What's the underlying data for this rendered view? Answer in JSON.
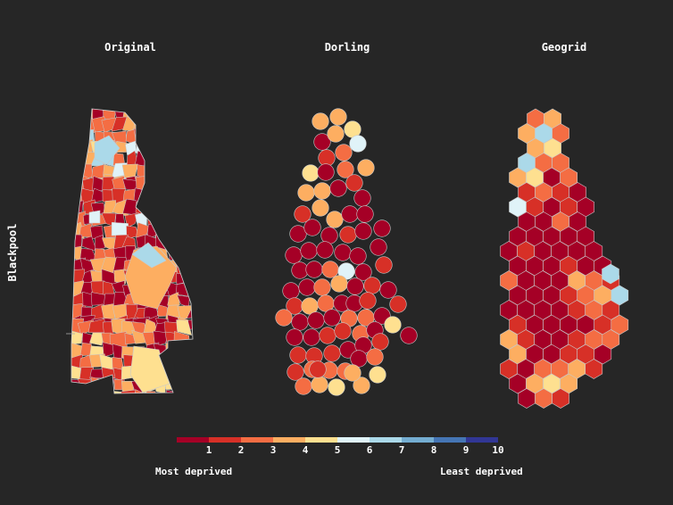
{
  "titles": {
    "original": "Original",
    "dorling": "Dorling",
    "geogrid": "Geogrid"
  },
  "side_label": "Blackpool",
  "legend": {
    "ticks": [
      "1",
      "2",
      "3",
      "4",
      "5",
      "6",
      "7",
      "8",
      "9",
      "10"
    ],
    "colors": [
      "#a50026",
      "#d73027",
      "#f46d43",
      "#fdae61",
      "#fee090",
      "#e0f3f8",
      "#abd9e9",
      "#74add1",
      "#4575b4",
      "#313695"
    ],
    "low_label": "Most deprived",
    "high_label": "Least deprived"
  },
  "deprivation_map": {
    "regions_count_note": "",
    "dorling_deciles": [
      4,
      4,
      5,
      1,
      4,
      6,
      2,
      3,
      4,
      5,
      1,
      3,
      2,
      4,
      4,
      1,
      1,
      2,
      4,
      4,
      1,
      1,
      1,
      1,
      1,
      1,
      2,
      1,
      1,
      1,
      1,
      1,
      1,
      1,
      2,
      1,
      1,
      3,
      6,
      1,
      1,
      1,
      3,
      4,
      1,
      2,
      1,
      2,
      4,
      3,
      1,
      1,
      2,
      2,
      3,
      1,
      1,
      1,
      3,
      3,
      1,
      1,
      1,
      2,
      2,
      3,
      1,
      1,
      2,
      2,
      2,
      1,
      1,
      2,
      2,
      3,
      3,
      3,
      1,
      3,
      3,
      4,
      5,
      4,
      5,
      2,
      4,
      5
    ],
    "geogrid_deciles": [
      3,
      4,
      4,
      7,
      3,
      4,
      5,
      7,
      3,
      3,
      4,
      5,
      1,
      3,
      2,
      3,
      2,
      1,
      6,
      2,
      1,
      2,
      1,
      1,
      1,
      3,
      1,
      1,
      1,
      1,
      1,
      1,
      1,
      2,
      1,
      1,
      1,
      1,
      1,
      1,
      1,
      2,
      1,
      1,
      3,
      1,
      1,
      1,
      4,
      3,
      2,
      1,
      1,
      1,
      2,
      3,
      4,
      7,
      1,
      1,
      1,
      1,
      2,
      3,
      2,
      2,
      1,
      1,
      1,
      1,
      2,
      3,
      4,
      2,
      1,
      1,
      2,
      3,
      3,
      4,
      1,
      1,
      2,
      2,
      1,
      2,
      1,
      3,
      3,
      4,
      2,
      1,
      4,
      5,
      4,
      1,
      3,
      2,
      3,
      4,
      5,
      3,
      5,
      3,
      2
    ]
  }
}
